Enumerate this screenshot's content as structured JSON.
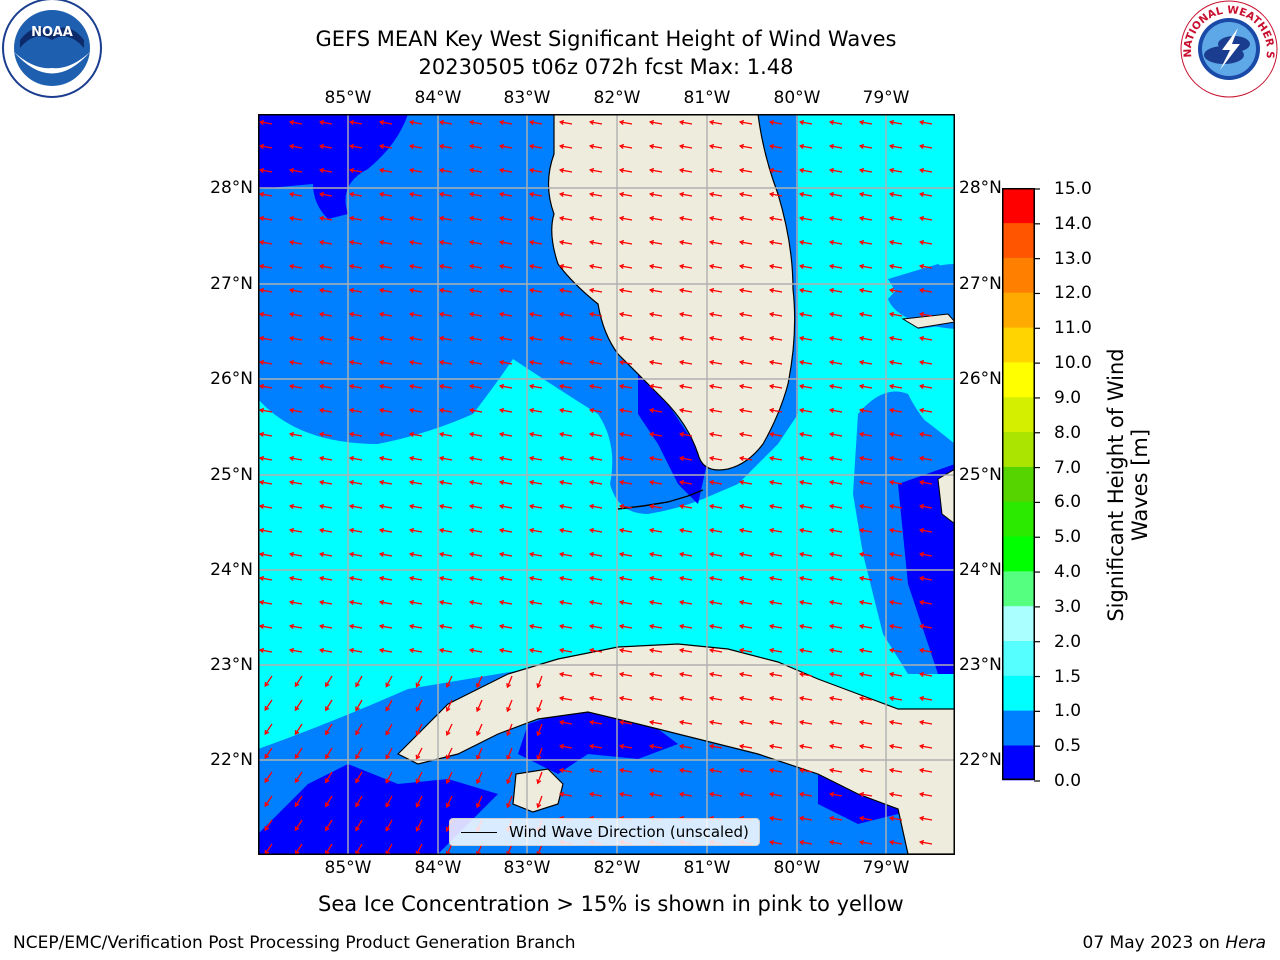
{
  "title": {
    "line1": "GEFS MEAN Key West Significant Height of Wind Waves",
    "line2": "20230505 t06z 072h fcst   Max: 1.48"
  },
  "logos": {
    "left": {
      "text": "NOAA",
      "icon": "noaa-logo"
    },
    "right": {
      "text": "NATIONAL WEATHER SERVICE",
      "icon": "nws-logo"
    }
  },
  "map": {
    "lon_labels": [
      "85°W",
      "84°W",
      "83°W",
      "82°W",
      "81°W",
      "80°W",
      "79°W"
    ],
    "lat_labels": [
      "28°N",
      "27°N",
      "26°N",
      "25°N",
      "24°N",
      "23°N",
      "22°N"
    ],
    "colors": {
      "land": "#eeeddd",
      "ocean_light": "#00ffff",
      "ocean_mid": "#0080ff",
      "ocean_dark": "#0000ff",
      "arrow": "#ff0000",
      "grid": "#b0b0b0"
    },
    "legend": "Wind Wave Direction (unscaled)"
  },
  "colorbar": {
    "title_line1": "Significant Height of Wind",
    "title_line2": "Waves [m]",
    "labels": [
      "15.0",
      "14.0",
      "13.0",
      "12.0",
      "11.0",
      "10.0",
      "9.0",
      "8.0",
      "7.0",
      "6.0",
      "5.0",
      "4.0",
      "3.0",
      "2.0",
      "1.5",
      "1.0",
      "0.5",
      "0.0"
    ],
    "colors": [
      "#0000ff",
      "#0080ff",
      "#00ffff",
      "#55ffff",
      "#aaffff",
      "#55ff80",
      "#00ff00",
      "#2bea00",
      "#55d400",
      "#aae400",
      "#d4ef00",
      "#ffff00",
      "#ffd400",
      "#ffaa00",
      "#ff8000",
      "#ff5500",
      "#ff0000"
    ]
  },
  "notes": {
    "ice": "Sea Ice Concentration > 15% is shown in pink to yellow"
  },
  "footer": {
    "left": "NCEP/EMC/Verification Post Processing Product Generation Branch",
    "right_prefix": "07 May 2023 on ",
    "right_host": "Hera"
  }
}
